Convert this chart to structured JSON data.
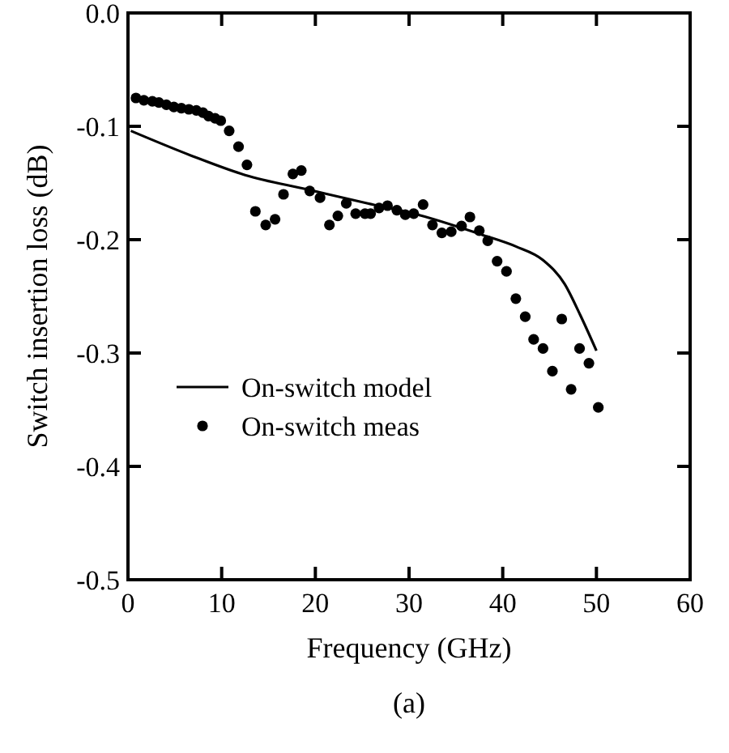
{
  "chart_data": {
    "type": "scatter",
    "xlabel": "Frequency (GHz)",
    "ylabel": "Switch insertion loss (dB)",
    "annotations": [
      "(a)"
    ],
    "xlim": [
      0,
      60
    ],
    "xticks": [
      0,
      10,
      20,
      30,
      40,
      50,
      60
    ],
    "ylim": [
      -0.5,
      0
    ],
    "yticks": [
      {
        "value": 0,
        "label": "0.0"
      },
      {
        "value": -0.1,
        "label": "-0.1"
      },
      {
        "value": -0.2,
        "label": "-0.2"
      },
      {
        "value": -0.3,
        "label": "-0.3"
      },
      {
        "value": -0.4,
        "label": "-0.4"
      },
      {
        "value": -0.5,
        "label": "-0.5"
      }
    ],
    "grid": false,
    "legend": "left",
    "series": [
      {
        "name": "On-switch model",
        "type": "line",
        "color": "#000000",
        "marker": "none",
        "line_style": "solid",
        "x": [
          0.3,
          6.8,
          12.5,
          19.3,
          25.6,
          30.5,
          37.9,
          41.4,
          44.3,
          46.6,
          48.3,
          50.0
        ],
        "values": [
          -0.104,
          -0.126,
          -0.143,
          -0.156,
          -0.168,
          -0.177,
          -0.196,
          -0.206,
          -0.218,
          -0.239,
          -0.267,
          -0.298
        ]
      },
      {
        "name": "On-switch meas",
        "color": "#000000",
        "marker": "circle",
        "x": [
          0.85,
          1.7,
          2.6,
          3.3,
          4.1,
          4.9,
          5.7,
          6.5,
          7.3,
          8.0,
          8.6,
          9.3,
          9.9,
          10.8,
          11.8,
          12.7,
          13.6,
          14.7,
          15.7,
          16.6,
          17.6,
          18.5,
          19.4,
          20.5,
          21.5,
          22.4,
          23.3,
          24.3,
          25.3,
          25.9,
          26.8,
          27.7,
          28.7,
          29.6,
          30.5,
          31.5,
          32.5,
          33.5,
          34.5,
          35.6,
          36.5,
          37.5,
          38.4,
          39.4,
          40.4,
          41.4,
          42.4,
          43.3,
          44.3,
          45.3,
          46.3,
          47.3,
          48.2,
          49.2,
          50.2
        ],
        "values": [
          -0.075,
          -0.077,
          -0.078,
          -0.079,
          -0.081,
          -0.083,
          -0.084,
          -0.085,
          -0.086,
          -0.088,
          -0.091,
          -0.093,
          -0.095,
          -0.104,
          -0.118,
          -0.134,
          -0.175,
          -0.187,
          -0.182,
          -0.16,
          -0.142,
          -0.139,
          -0.157,
          -0.163,
          -0.187,
          -0.179,
          -0.168,
          -0.177,
          -0.177,
          -0.177,
          -0.172,
          -0.17,
          -0.174,
          -0.178,
          -0.177,
          -0.169,
          -0.187,
          -0.194,
          -0.193,
          -0.188,
          -0.18,
          -0.192,
          -0.201,
          -0.219,
          -0.228,
          -0.252,
          -0.268,
          -0.288,
          -0.296,
          -0.316,
          -0.27,
          -0.332,
          -0.296,
          -0.309,
          -0.348
        ]
      }
    ]
  }
}
